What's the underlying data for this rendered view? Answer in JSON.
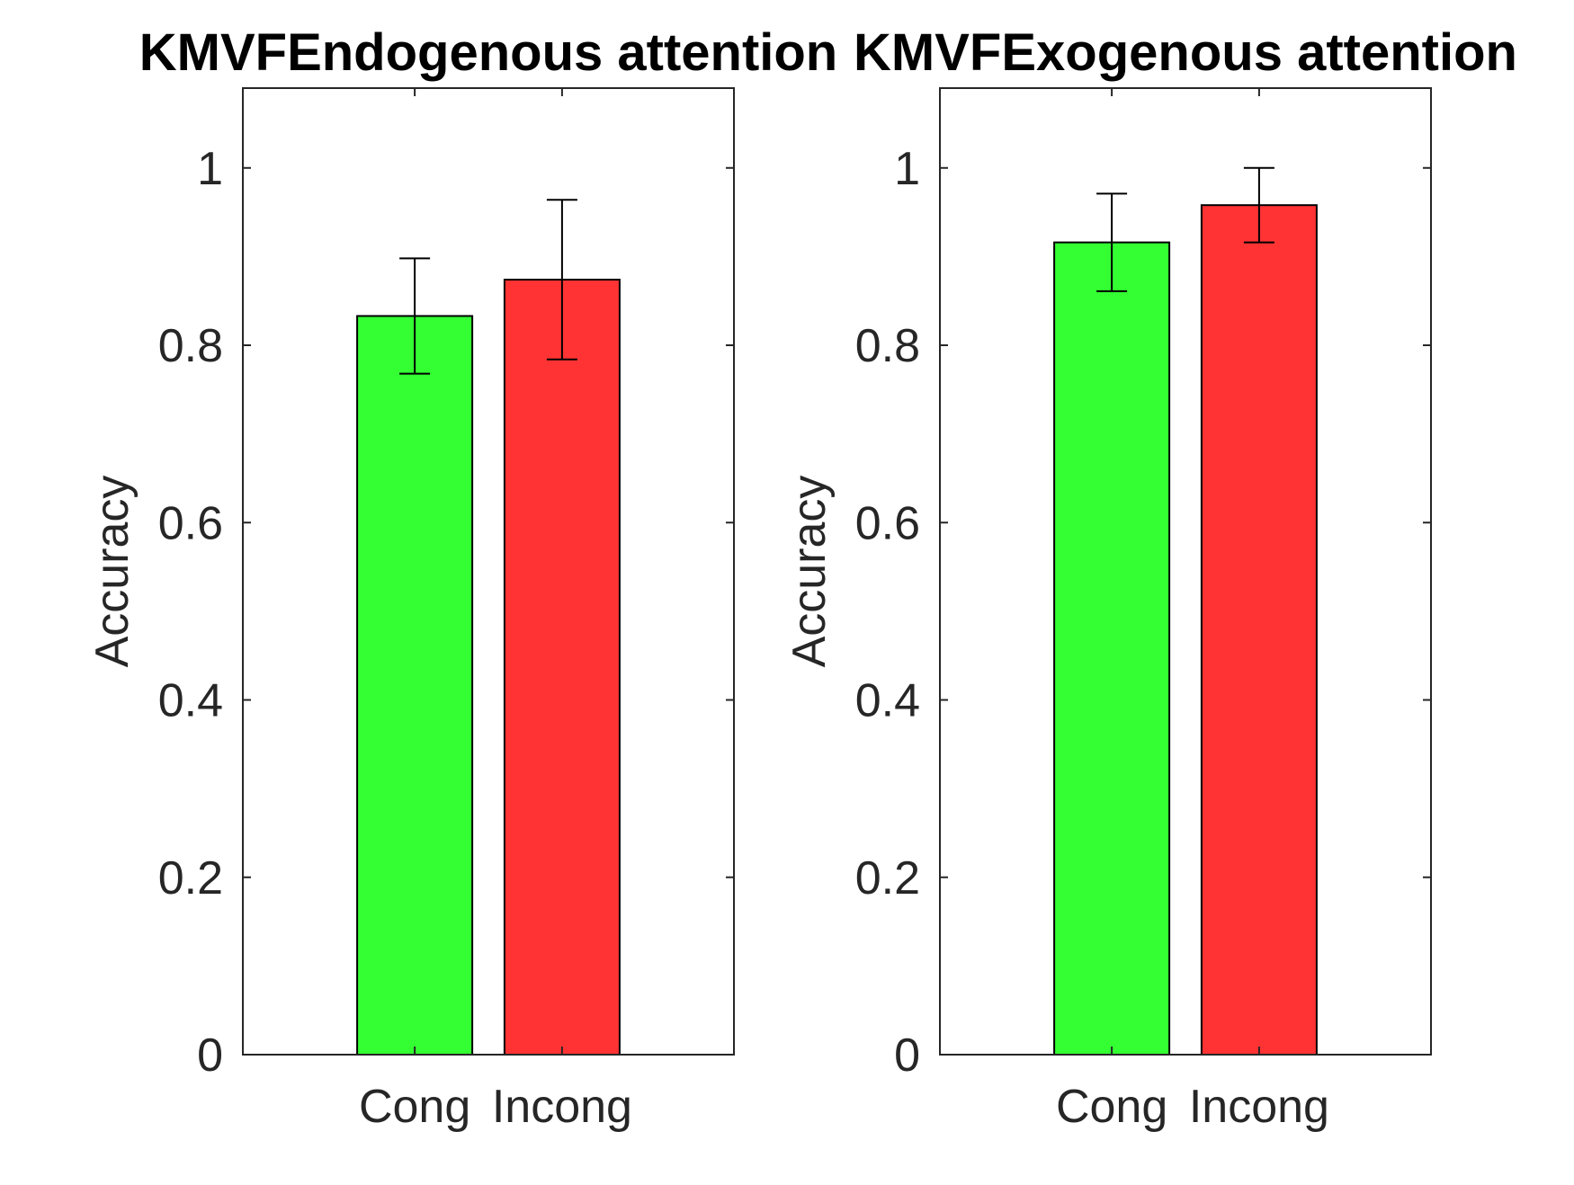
{
  "chart_data": [
    {
      "type": "bar",
      "title": "KMVFEndogenous attention",
      "xlabel": "",
      "ylabel": "Accuracy",
      "categories": [
        "Cong",
        "Incong"
      ],
      "values": [
        0.833,
        0.874
      ],
      "error_low": [
        0.768,
        0.784
      ],
      "error_high": [
        0.898,
        0.964
      ],
      "colors": [
        "#33ff33",
        "#ff3333"
      ],
      "ylim": [
        0,
        1.09
      ],
      "yticks": [
        0,
        0.2,
        0.4,
        0.6,
        0.8,
        1
      ],
      "ytick_labels": [
        "0",
        "0.2",
        "0.4",
        "0.6",
        "0.8",
        "1"
      ],
      "grid": false,
      "legend": "none"
    },
    {
      "type": "bar",
      "title": "KMVFExogenous attention",
      "xlabel": "",
      "ylabel": "Accuracy",
      "categories": [
        "Cong",
        "Incong"
      ],
      "values": [
        0.916,
        0.958
      ],
      "error_low": [
        0.861,
        0.916
      ],
      "error_high": [
        0.971,
        1.0
      ],
      "colors": [
        "#33ff33",
        "#ff3333"
      ],
      "ylim": [
        0,
        1.09
      ],
      "yticks": [
        0,
        0.2,
        0.4,
        0.6,
        0.8,
        1
      ],
      "ytick_labels": [
        "0",
        "0.2",
        "0.4",
        "0.6",
        "0.8",
        "1"
      ],
      "grid": false,
      "legend": "none"
    }
  ]
}
